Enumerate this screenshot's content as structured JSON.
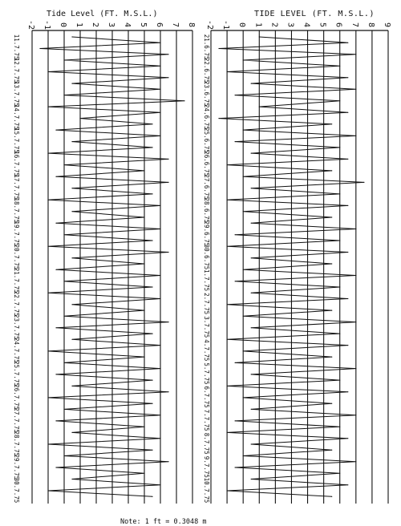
{
  "page": {
    "title_left": "Tide Level (FT. M.S.L.)",
    "title_right": "TIDE LEVEL (FT. M.S.L.)",
    "note": "Note:  1 ft = 0.3048 m"
  },
  "colors": {
    "ink": "#111111",
    "paper": "#ffffff"
  },
  "chart_data": [
    {
      "type": "line",
      "title": "Tide Level (FT. M.S.L.)",
      "xlabel": "",
      "ylabel": "",
      "xlim": [
        -2,
        8
      ],
      "x_ticks": [
        "-2",
        "-1",
        "0",
        "1",
        "2",
        "3",
        "4",
        "5",
        "6",
        "7",
        "8"
      ],
      "grid": true,
      "date_labels": [
        "11.7.75",
        "12.7.75",
        "13.7.75",
        "14.7.75",
        "15.7.75",
        "16.7.75",
        "17.7.75",
        "18.7.75",
        "19.7.75",
        "20.7.75",
        "21.7.75",
        "22.7.75",
        "23.7.75",
        "24.7.75",
        "25.7.75",
        "26.7.75",
        "27.7.75",
        "28.7.75",
        "29.7.75",
        "30.7.75"
      ],
      "series": [
        {
          "values": [
            0.5,
            6.0,
            -1.5,
            6.5,
            0.0,
            6.0,
            -1.0,
            6.5,
            0.5,
            6.0,
            0.0,
            7.5,
            -1.0,
            6.0,
            1.0,
            5.5,
            -0.5,
            6.0,
            0.5,
            5.5,
            -1.0,
            6.5,
            0.0,
            5.0,
            -0.5,
            6.5,
            0.5,
            5.5,
            -1.0,
            6.0,
            0.5,
            5.0,
            -0.5,
            6.0,
            0.0,
            5.5,
            -1.0,
            6.5,
            0.5,
            5.0,
            -0.5,
            6.0,
            0.0,
            5.5,
            -1.0,
            6.0,
            0.5,
            5.0,
            0.0,
            6.5,
            -0.5,
            5.5,
            0.5,
            6.0,
            -1.0,
            5.0,
            0.0,
            6.0,
            -0.5,
            5.5,
            0.5,
            6.5,
            -1.0,
            5.5,
            0.0,
            6.0,
            -0.5,
            5.0,
            0.5,
            6.0,
            -1.0,
            5.5,
            0.0,
            6.5,
            -0.5,
            5.0,
            0.5,
            6.0,
            -1.0,
            5.5
          ]
        }
      ]
    },
    {
      "type": "line",
      "title": "TIDE LEVEL (FT. M.S.L.)",
      "xlabel": "",
      "ylabel": "",
      "xlim": [
        -2,
        9
      ],
      "x_ticks": [
        "-2",
        "-1",
        "0",
        "1",
        "2",
        "3",
        "4",
        "5",
        "6",
        "7",
        "8",
        "9"
      ],
      "grid": true,
      "date_labels": [
        "21.6.75",
        "22.6.75",
        "23.6.75",
        "24.6.75",
        "25.6.75",
        "26.6.75",
        "27.6.75",
        "28.6.75",
        "29.6.75",
        "30.6.75",
        "1.7.75",
        "2.7.75",
        "3.7.75",
        "4.7.75",
        "5.7.75",
        "6.7.75",
        "7.7.75",
        "8.7.75",
        "9.7.75",
        "10.7.75"
      ],
      "series": [
        {
          "values": [
            1.0,
            6.5,
            -1.5,
            7.0,
            0.0,
            6.0,
            -1.0,
            6.5,
            0.5,
            7.0,
            -0.5,
            6.0,
            1.0,
            6.5,
            -1.5,
            5.5,
            0.0,
            7.0,
            -0.5,
            6.0,
            0.5,
            6.5,
            -1.0,
            5.5,
            0.0,
            7.5,
            0.5,
            6.0,
            -1.0,
            6.5,
            0.0,
            5.5,
            0.5,
            7.0,
            -0.5,
            6.0,
            -1.0,
            6.5,
            0.5,
            5.5,
            0.0,
            7.0,
            -0.5,
            6.0,
            0.5,
            6.5,
            -1.0,
            5.5,
            0.0,
            7.0,
            0.5,
            6.0,
            -1.0,
            6.5,
            0.0,
            5.5,
            -0.5,
            7.0,
            0.5,
            6.0,
            -1.0,
            6.5,
            0.0,
            5.5,
            0.5,
            7.0,
            -0.5,
            6.0,
            -1.0,
            6.5,
            0.5,
            5.5,
            0.0,
            7.0,
            -0.5,
            6.0,
            0.5,
            6.5,
            -1.0,
            5.5
          ]
        }
      ]
    }
  ]
}
